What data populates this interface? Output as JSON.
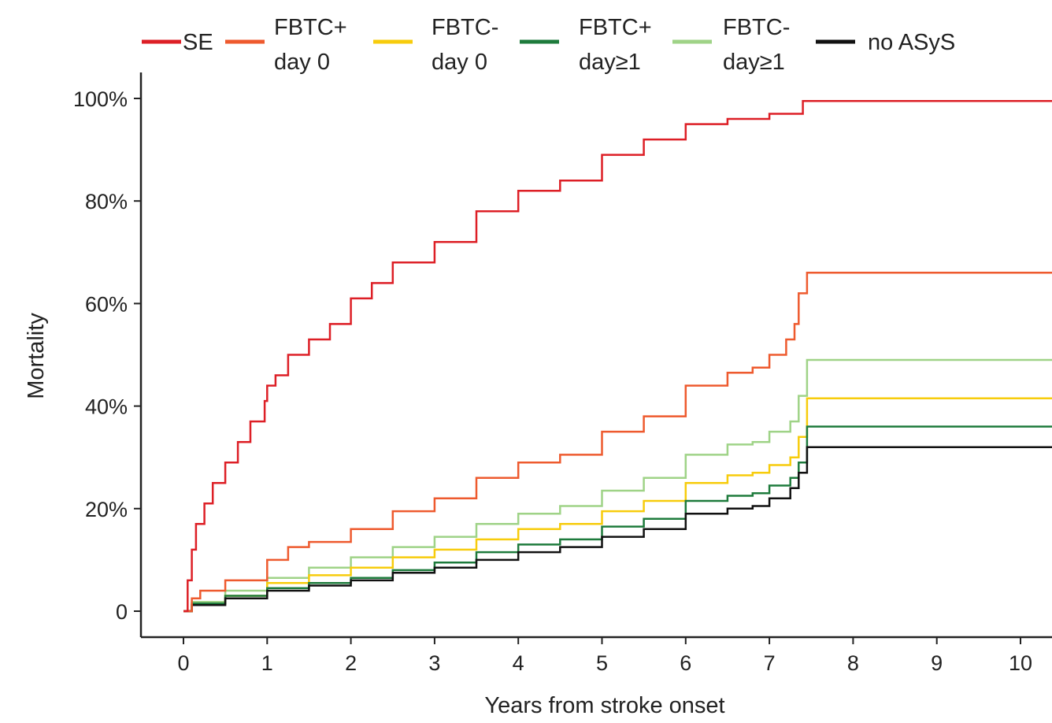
{
  "chart_data": {
    "type": "line",
    "step": true,
    "xlabel": "Years from stroke onset",
    "ylabel": "Mortality",
    "xlim": [
      0,
      10.4
    ],
    "ylim": [
      0,
      100
    ],
    "x_ticks": [
      0,
      1,
      2,
      3,
      4,
      5,
      6,
      7,
      8,
      9,
      10
    ],
    "x_tick_labels": [
      "0",
      "1",
      "2",
      "3",
      "4",
      "5",
      "6",
      "7",
      "8",
      "9",
      "10"
    ],
    "y_ticks": [
      0,
      20,
      40,
      60,
      80,
      100
    ],
    "y_tick_labels": [
      "0",
      "20%",
      "40%",
      "60%",
      "80%",
      "100%"
    ],
    "grid": false,
    "legend_position": "top",
    "series": [
      {
        "name": "SE",
        "legend_lines": [
          "SE"
        ],
        "color": "#dd1f26",
        "points": [
          [
            0,
            0
          ],
          [
            0.05,
            6
          ],
          [
            0.1,
            12
          ],
          [
            0.15,
            17
          ],
          [
            0.25,
            21
          ],
          [
            0.35,
            25
          ],
          [
            0.5,
            29
          ],
          [
            0.65,
            33
          ],
          [
            0.8,
            37
          ],
          [
            0.97,
            41
          ],
          [
            1.0,
            44
          ],
          [
            1.1,
            46
          ],
          [
            1.25,
            50
          ],
          [
            1.5,
            53
          ],
          [
            1.75,
            56
          ],
          [
            2.0,
            61
          ],
          [
            2.25,
            64
          ],
          [
            2.5,
            68
          ],
          [
            3.0,
            72
          ],
          [
            3.5,
            78
          ],
          [
            4.0,
            82
          ],
          [
            4.5,
            84
          ],
          [
            5.0,
            89
          ],
          [
            5.5,
            92
          ],
          [
            6.0,
            95
          ],
          [
            6.5,
            96
          ],
          [
            7.0,
            97
          ],
          [
            7.4,
            99.5
          ],
          [
            10.4,
            99.5
          ]
        ]
      },
      {
        "name": "FBTC+ day 0",
        "legend_lines": [
          "FBTC+",
          "day 0"
        ],
        "color": "#ee5a2e",
        "points": [
          [
            0,
            0
          ],
          [
            0.1,
            2.5
          ],
          [
            0.2,
            4
          ],
          [
            0.5,
            6
          ],
          [
            1.0,
            10
          ],
          [
            1.25,
            12.5
          ],
          [
            1.5,
            13.5
          ],
          [
            2.0,
            16
          ],
          [
            2.5,
            19.5
          ],
          [
            3.0,
            22
          ],
          [
            3.5,
            26
          ],
          [
            4.0,
            29
          ],
          [
            4.5,
            30.5
          ],
          [
            5.0,
            35
          ],
          [
            5.5,
            38
          ],
          [
            6.0,
            44
          ],
          [
            6.5,
            46.5
          ],
          [
            6.8,
            47.5
          ],
          [
            7.0,
            50
          ],
          [
            7.2,
            53
          ],
          [
            7.3,
            56
          ],
          [
            7.35,
            62
          ],
          [
            7.45,
            66
          ],
          [
            10.4,
            66
          ]
        ]
      },
      {
        "name": "FBTC- day 0",
        "legend_lines": [
          "FBTC-",
          "day 0"
        ],
        "color": "#f7cc0c",
        "points": [
          [
            0,
            0
          ],
          [
            0.1,
            1.5
          ],
          [
            0.5,
            3
          ],
          [
            1.0,
            5.5
          ],
          [
            1.5,
            7
          ],
          [
            2.0,
            8.5
          ],
          [
            2.5,
            10.5
          ],
          [
            3.0,
            12
          ],
          [
            3.5,
            14
          ],
          [
            4.0,
            16
          ],
          [
            4.5,
            17
          ],
          [
            5.0,
            19.5
          ],
          [
            5.5,
            21.5
          ],
          [
            6.0,
            25
          ],
          [
            6.5,
            26.5
          ],
          [
            6.8,
            27
          ],
          [
            7.0,
            28.5
          ],
          [
            7.25,
            30
          ],
          [
            7.35,
            34
          ],
          [
            7.45,
            41.5
          ],
          [
            10.4,
            41.5
          ]
        ]
      },
      {
        "name": "FBTC+ day≥1",
        "legend_lines": [
          "FBTC+",
          "day≥1"
        ],
        "color": "#1e7b3c",
        "points": [
          [
            0,
            0
          ],
          [
            0.1,
            1.5
          ],
          [
            0.5,
            3
          ],
          [
            1.0,
            4.5
          ],
          [
            1.5,
            5.5
          ],
          [
            2.0,
            6.5
          ],
          [
            2.5,
            8
          ],
          [
            3.0,
            9.5
          ],
          [
            3.5,
            11.5
          ],
          [
            4.0,
            13
          ],
          [
            4.5,
            14
          ],
          [
            5.0,
            16.5
          ],
          [
            5.5,
            18
          ],
          [
            6.0,
            21.5
          ],
          [
            6.5,
            22.5
          ],
          [
            6.8,
            23
          ],
          [
            7.0,
            24.5
          ],
          [
            7.25,
            26
          ],
          [
            7.35,
            29
          ],
          [
            7.45,
            36
          ],
          [
            10.4,
            36
          ]
        ]
      },
      {
        "name": "FBTC- day≥1",
        "legend_lines": [
          "FBTC-",
          "day≥1"
        ],
        "color": "#9fd387",
        "points": [
          [
            0,
            0
          ],
          [
            0.1,
            1.8
          ],
          [
            0.5,
            4
          ],
          [
            1.0,
            6.5
          ],
          [
            1.5,
            8.5
          ],
          [
            2.0,
            10.5
          ],
          [
            2.5,
            12.5
          ],
          [
            3.0,
            14.5
          ],
          [
            3.5,
            17
          ],
          [
            4.0,
            19
          ],
          [
            4.5,
            20.5
          ],
          [
            5.0,
            23.5
          ],
          [
            5.5,
            26
          ],
          [
            6.0,
            30.5
          ],
          [
            6.5,
            32.5
          ],
          [
            6.8,
            33
          ],
          [
            7.0,
            35
          ],
          [
            7.25,
            37
          ],
          [
            7.35,
            42
          ],
          [
            7.45,
            49
          ],
          [
            10.4,
            49
          ]
        ]
      },
      {
        "name": "no ASyS",
        "legend_lines": [
          "no ASyS"
        ],
        "color": "#111111",
        "points": [
          [
            0,
            0
          ],
          [
            0.1,
            1.2
          ],
          [
            0.5,
            2.5
          ],
          [
            1.0,
            4
          ],
          [
            1.5,
            5
          ],
          [
            2.0,
            6
          ],
          [
            2.5,
            7.5
          ],
          [
            3.0,
            8.5
          ],
          [
            3.5,
            10
          ],
          [
            4.0,
            11.5
          ],
          [
            4.5,
            12.5
          ],
          [
            5.0,
            14.5
          ],
          [
            5.5,
            16
          ],
          [
            6.0,
            19
          ],
          [
            6.5,
            20
          ],
          [
            6.8,
            20.5
          ],
          [
            7.0,
            22
          ],
          [
            7.25,
            24
          ],
          [
            7.35,
            27
          ],
          [
            7.45,
            32
          ],
          [
            10.4,
            32
          ]
        ]
      }
    ]
  }
}
